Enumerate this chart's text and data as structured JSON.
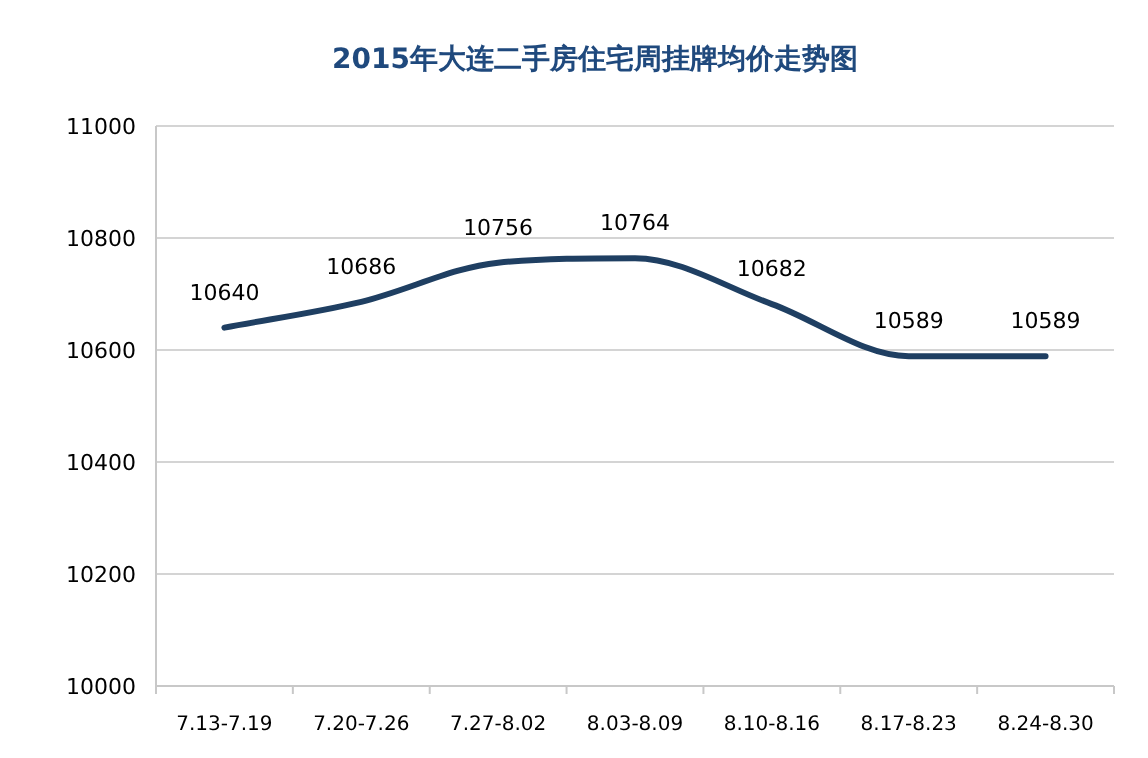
{
  "chart_data": {
    "type": "line",
    "title": "2015年大连二手房住宅周挂牌均价走势图",
    "categories": [
      "7.13-7.19",
      "7.20-7.26",
      "7.27-8.02",
      "8.03-8.09",
      "8.10-8.16",
      "8.17-8.23",
      "8.24-8.30"
    ],
    "series": [
      {
        "color": "#1f3f62",
        "values": [
          10640,
          10686,
          10756,
          10764,
          10682,
          10589,
          10589
        ]
      }
    ],
    "ylim": [
      10000,
      11000
    ],
    "yticks": [
      10000,
      10200,
      10400,
      10600,
      10800,
      11000
    ],
    "grid": "y",
    "data_labels": true,
    "marker": "none",
    "line_style": "solid"
  }
}
